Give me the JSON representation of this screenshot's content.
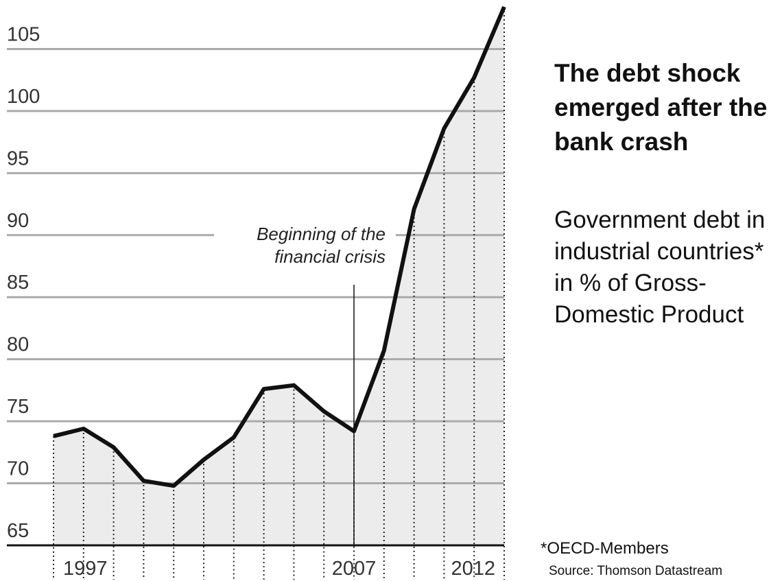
{
  "chart_data": {
    "type": "line",
    "title": "The debt shock emerged after the bank crash",
    "subtitle": "Government debt in industrial countries* in % of Gross-Domestic Product",
    "annotation": [
      "Beginning of the",
      "financial crisis"
    ],
    "annotation_x": 2007,
    "footnote": "*OECD-Members",
    "source": "Source: Thomson Datastream",
    "x": [
      1997,
      1998,
      1999,
      2000,
      2001,
      2002,
      2003,
      2004,
      2005,
      2006,
      2007,
      2008,
      2009,
      2010,
      2011,
      2012
    ],
    "series": [
      {
        "name": "Government debt",
        "color": "#111111",
        "values": [
          73.8,
          74.4,
          72.9,
          70.2,
          69.8,
          71.9,
          73.7,
          77.6,
          77.9,
          75.8,
          74.2,
          80.7,
          92.1,
          98.6,
          102.7,
          108.4
        ]
      }
    ],
    "xlim": [
      1997,
      2012
    ],
    "xticks": [
      1997,
      2007,
      2012
    ],
    "ylim": [
      65,
      108.4
    ],
    "yticks": [
      65,
      70,
      75,
      80,
      85,
      90,
      95,
      100,
      105
    ],
    "grid": true
  }
}
